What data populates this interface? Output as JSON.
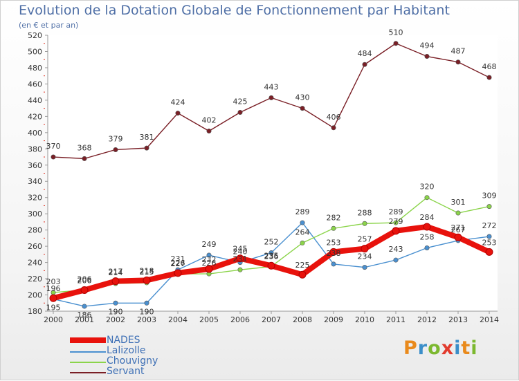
{
  "title": "Evolution de la Dotation Globale de Fonctionnement par Habitant",
  "subtitle": "(en € et par an)",
  "logo": {
    "text": "Proxiti",
    "letter_colors": [
      "#e98a1c",
      "#3a8ec9",
      "#7cb82f",
      "#e23b2e",
      "#3a8ec9",
      "#e98a1c",
      "#7cb82f"
    ]
  },
  "chart_data": {
    "type": "line",
    "title": "Evolution de la Dotation Globale de Fonctionnement par Habitant",
    "subtitle": "(en € et par an)",
    "xlabel": "",
    "ylabel": "",
    "x": [
      2000,
      2001,
      2002,
      2003,
      2004,
      2005,
      2006,
      2007,
      2008,
      2009,
      2010,
      2011,
      2012,
      2013,
      2014
    ],
    "ylim": [
      180,
      520
    ],
    "yticks": [
      180,
      200,
      220,
      240,
      260,
      280,
      300,
      320,
      340,
      360,
      380,
      400,
      420,
      440,
      460,
      480,
      500,
      520
    ],
    "grid": false,
    "legend_position": "bottom-left",
    "series": [
      {
        "name": "NADES",
        "color": "#e8120c",
        "thick": true,
        "values": [
          196,
          206,
          217,
          218,
          227,
          232,
          245,
          236,
          225,
          253,
          257,
          279,
          284,
          271,
          253
        ],
        "labels": [
          "196",
          "206",
          "217",
          "218",
          "227",
          "232",
          "245",
          "236",
          "225",
          "253",
          "257",
          "279",
          "284",
          "271",
          "253"
        ]
      },
      {
        "name": "Lalizolle",
        "color": "#4a90d0",
        "thick": false,
        "values": [
          195,
          186,
          190,
          190,
          231,
          249,
          240,
          252,
          289,
          238,
          234,
          243,
          258,
          267,
          272
        ],
        "labels": [
          "195",
          "186",
          "190",
          "190",
          "231",
          "249",
          "240",
          "252",
          "289",
          "238",
          "234",
          "243",
          "258",
          "267",
          "272"
        ]
      },
      {
        "name": "Chouvigny",
        "color": "#8bd44a",
        "thick": false,
        "values": [
          203,
          206,
          214,
          215,
          226,
          226,
          231,
          235,
          264,
          282,
          288,
          289,
          320,
          301,
          309
        ],
        "labels": [
          "203",
          "206",
          "214",
          "215",
          "226",
          "226",
          "231",
          "235",
          "264",
          "282",
          "288",
          "289",
          "320",
          "301",
          "309"
        ]
      },
      {
        "name": "Servant",
        "color": "#7a1f26",
        "thick": false,
        "values": [
          370,
          368,
          379,
          381,
          424,
          402,
          425,
          443,
          430,
          406,
          484,
          510,
          494,
          487,
          468
        ],
        "labels": [
          "370",
          "368",
          "379",
          "381",
          "424",
          "402",
          "425",
          "443",
          "430",
          "406",
          "484",
          "510",
          "494",
          "487",
          "468"
        ]
      }
    ]
  }
}
